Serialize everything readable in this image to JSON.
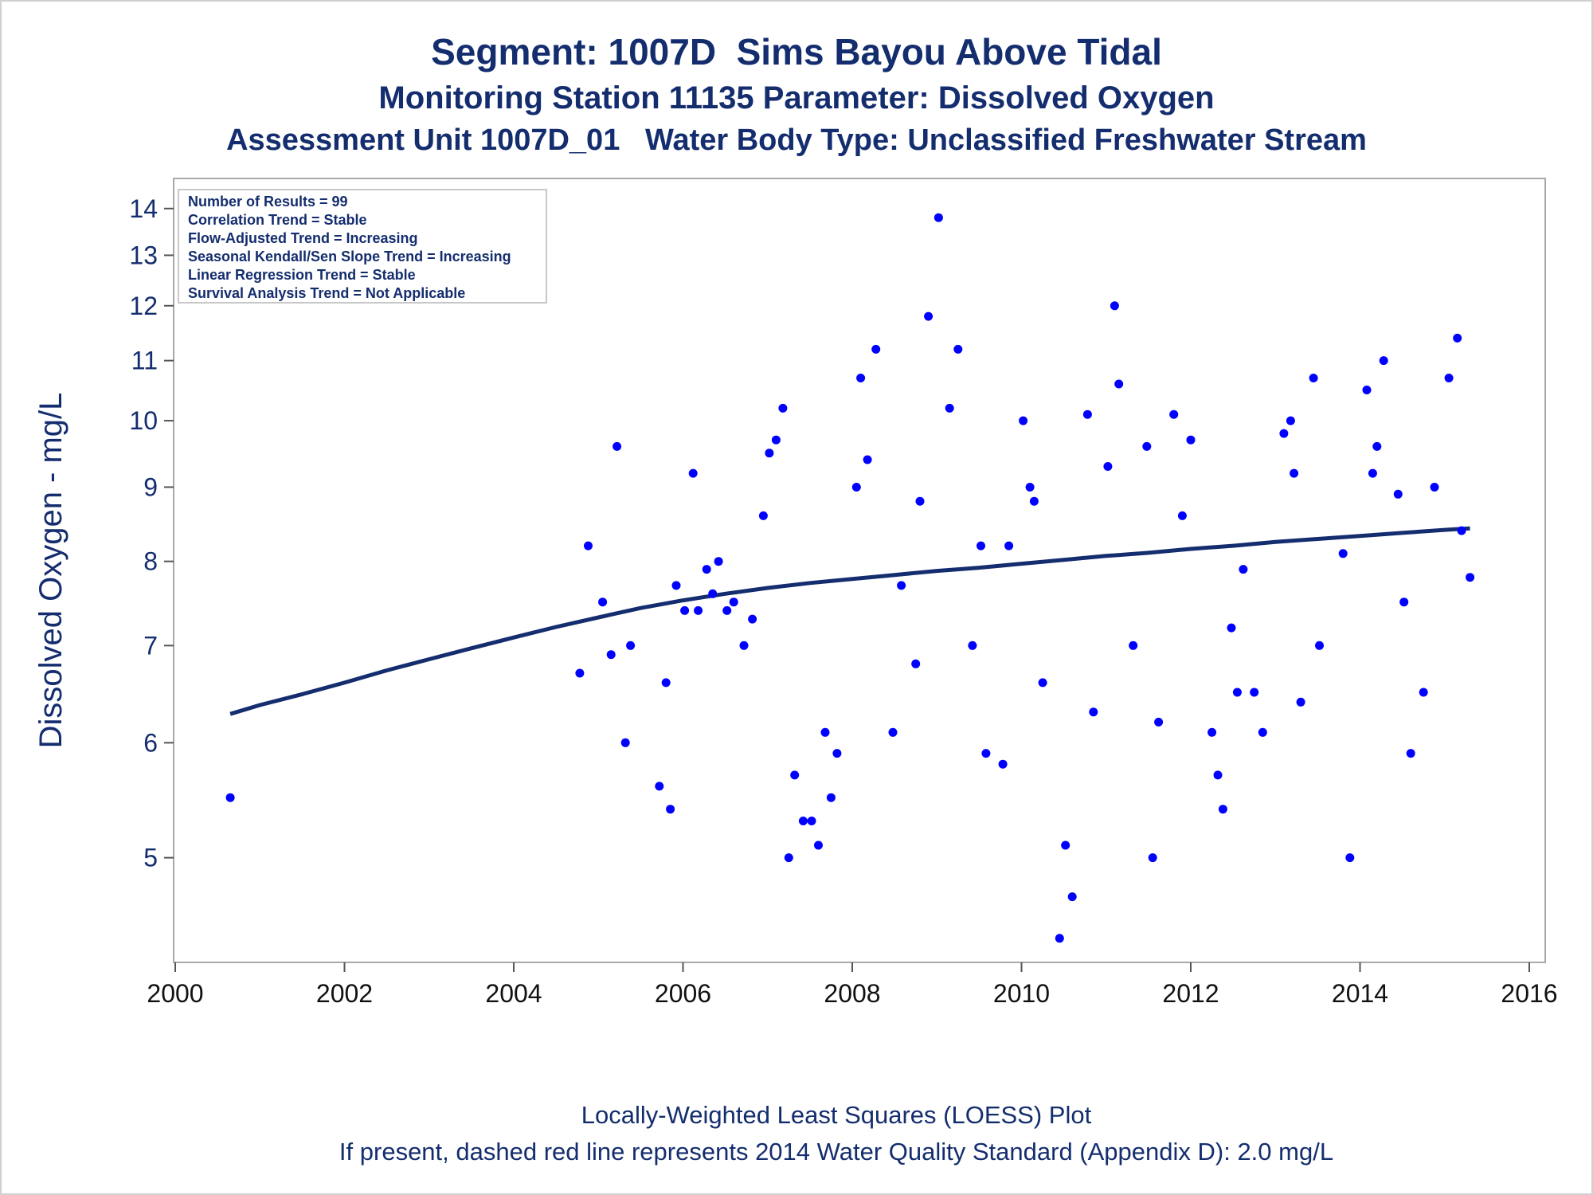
{
  "chart_data": {
    "type": "scatter",
    "title": "Segment: 1007D  Sims Bayou Above Tidal",
    "subtitle": "Monitoring Station 11135 Parameter: Dissolved Oxygen",
    "subtitle2": "Assessment Unit 1007D_01   Water Body Type: Unclassified Freshwater Stream",
    "ylabel": "Dissolved Oxygen - mg/L",
    "xlabel": "",
    "yscale": "log",
    "xlim": [
      2000,
      2016
    ],
    "ylim": [
      4.3,
      14.3
    ],
    "x_ticks": [
      "2000",
      "2002",
      "2004",
      "2006",
      "2008",
      "2010",
      "2012",
      "2014",
      "2016"
    ],
    "y_ticks": [
      "5",
      "6",
      "7",
      "8",
      "9",
      "10",
      "11",
      "12",
      "13",
      "14"
    ],
    "grid": false,
    "legend_placement": "top-left",
    "stats_box": [
      "Number of Results = 99",
      "Correlation Trend = Stable",
      "Flow-Adjusted Trend = Increasing",
      "Seasonal Kendall/Sen Slope Trend = Increasing",
      "Linear Regression Trend = Stable",
      "Survival Analysis Trend = Not Applicable"
    ],
    "series": [
      {
        "type": "scatter",
        "color": "#0000ff",
        "points": [
          [
            2000.65,
            5.5
          ],
          [
            2004.78,
            6.7
          ],
          [
            2004.88,
            8.2
          ],
          [
            2005.05,
            7.5
          ],
          [
            2005.15,
            6.9
          ],
          [
            2005.22,
            9.6
          ],
          [
            2005.32,
            6.0
          ],
          [
            2005.38,
            7.0
          ],
          [
            2005.72,
            5.6
          ],
          [
            2005.8,
            6.6
          ],
          [
            2005.85,
            5.4
          ],
          [
            2005.92,
            7.7
          ],
          [
            2006.02,
            7.4
          ],
          [
            2006.12,
            9.2
          ],
          [
            2006.18,
            7.4
          ],
          [
            2006.28,
            7.9
          ],
          [
            2006.35,
            7.6
          ],
          [
            2006.42,
            8.0
          ],
          [
            2006.52,
            7.4
          ],
          [
            2006.6,
            7.5
          ],
          [
            2006.72,
            7.0
          ],
          [
            2006.82,
            7.3
          ],
          [
            2006.95,
            8.6
          ],
          [
            2007.02,
            9.5
          ],
          [
            2007.1,
            9.7
          ],
          [
            2007.18,
            10.2
          ],
          [
            2007.25,
            5.0
          ],
          [
            2007.32,
            5.7
          ],
          [
            2007.42,
            5.3
          ],
          [
            2007.52,
            5.3
          ],
          [
            2007.6,
            5.1
          ],
          [
            2007.68,
            6.1
          ],
          [
            2007.75,
            5.5
          ],
          [
            2007.82,
            5.9
          ],
          [
            2008.05,
            9.0
          ],
          [
            2008.1,
            10.7
          ],
          [
            2008.18,
            9.4
          ],
          [
            2008.28,
            11.2
          ],
          [
            2008.48,
            6.1
          ],
          [
            2008.58,
            7.7
          ],
          [
            2008.75,
            6.8
          ],
          [
            2008.8,
            8.8
          ],
          [
            2008.9,
            11.8
          ],
          [
            2009.02,
            13.8
          ],
          [
            2009.15,
            10.2
          ],
          [
            2009.25,
            11.2
          ],
          [
            2009.42,
            7.0
          ],
          [
            2009.52,
            8.2
          ],
          [
            2009.58,
            5.9
          ],
          [
            2009.78,
            5.8
          ],
          [
            2009.85,
            8.2
          ],
          [
            2010.02,
            10.0
          ],
          [
            2010.1,
            9.0
          ],
          [
            2010.15,
            8.8
          ],
          [
            2010.25,
            6.6
          ],
          [
            2010.45,
            4.4
          ],
          [
            2010.52,
            5.1
          ],
          [
            2010.6,
            4.7
          ],
          [
            2010.78,
            10.1
          ],
          [
            2010.85,
            6.3
          ],
          [
            2011.02,
            9.3
          ],
          [
            2011.1,
            12.0
          ],
          [
            2011.15,
            10.6
          ],
          [
            2011.32,
            7.0
          ],
          [
            2011.48,
            9.6
          ],
          [
            2011.55,
            5.0
          ],
          [
            2011.62,
            6.2
          ],
          [
            2011.8,
            10.1
          ],
          [
            2011.9,
            8.6
          ],
          [
            2012.0,
            9.7
          ],
          [
            2012.25,
            6.1
          ],
          [
            2012.32,
            5.7
          ],
          [
            2012.38,
            5.4
          ],
          [
            2012.48,
            7.2
          ],
          [
            2012.55,
            6.5
          ],
          [
            2012.62,
            7.9
          ],
          [
            2012.75,
            6.5
          ],
          [
            2012.85,
            6.1
          ],
          [
            2013.1,
            9.8
          ],
          [
            2013.18,
            10.0
          ],
          [
            2013.22,
            9.2
          ],
          [
            2013.3,
            6.4
          ],
          [
            2013.45,
            10.7
          ],
          [
            2013.52,
            7.0
          ],
          [
            2013.8,
            8.1
          ],
          [
            2013.88,
            5.0
          ],
          [
            2014.08,
            10.5
          ],
          [
            2014.15,
            9.2
          ],
          [
            2014.2,
            9.6
          ],
          [
            2014.28,
            11.0
          ],
          [
            2014.45,
            8.9
          ],
          [
            2014.52,
            7.5
          ],
          [
            2014.6,
            5.9
          ],
          [
            2014.75,
            6.5
          ],
          [
            2014.88,
            9.0
          ],
          [
            2015.05,
            10.7
          ],
          [
            2015.15,
            11.4
          ],
          [
            2015.2,
            8.4
          ],
          [
            2015.3,
            7.8
          ]
        ]
      },
      {
        "type": "line",
        "color": "#142d6e",
        "points": [
          [
            2000.65,
            6.28
          ],
          [
            2001.0,
            6.37
          ],
          [
            2001.5,
            6.48
          ],
          [
            2002.0,
            6.6
          ],
          [
            2002.5,
            6.73
          ],
          [
            2003.0,
            6.85
          ],
          [
            2003.5,
            6.97
          ],
          [
            2004.0,
            7.09
          ],
          [
            2004.5,
            7.21
          ],
          [
            2005.0,
            7.32
          ],
          [
            2005.5,
            7.43
          ],
          [
            2006.0,
            7.52
          ],
          [
            2006.5,
            7.6
          ],
          [
            2007.0,
            7.67
          ],
          [
            2007.5,
            7.73
          ],
          [
            2008.0,
            7.78
          ],
          [
            2008.5,
            7.83
          ],
          [
            2009.0,
            7.88
          ],
          [
            2009.5,
            7.92
          ],
          [
            2010.0,
            7.97
          ],
          [
            2010.5,
            8.02
          ],
          [
            2011.0,
            8.07
          ],
          [
            2011.5,
            8.11
          ],
          [
            2012.0,
            8.16
          ],
          [
            2012.5,
            8.2
          ],
          [
            2013.0,
            8.25
          ],
          [
            2013.5,
            8.29
          ],
          [
            2014.0,
            8.33
          ],
          [
            2014.5,
            8.37
          ],
          [
            2015.0,
            8.41
          ],
          [
            2015.3,
            8.43
          ]
        ]
      }
    ]
  },
  "footer": {
    "line1": "Locally-Weighted Least Squares (LOESS) Plot",
    "line2": "If present, dashed red line represents 2014 Water Quality Standard (Appendix D): 2.0 mg/L"
  }
}
